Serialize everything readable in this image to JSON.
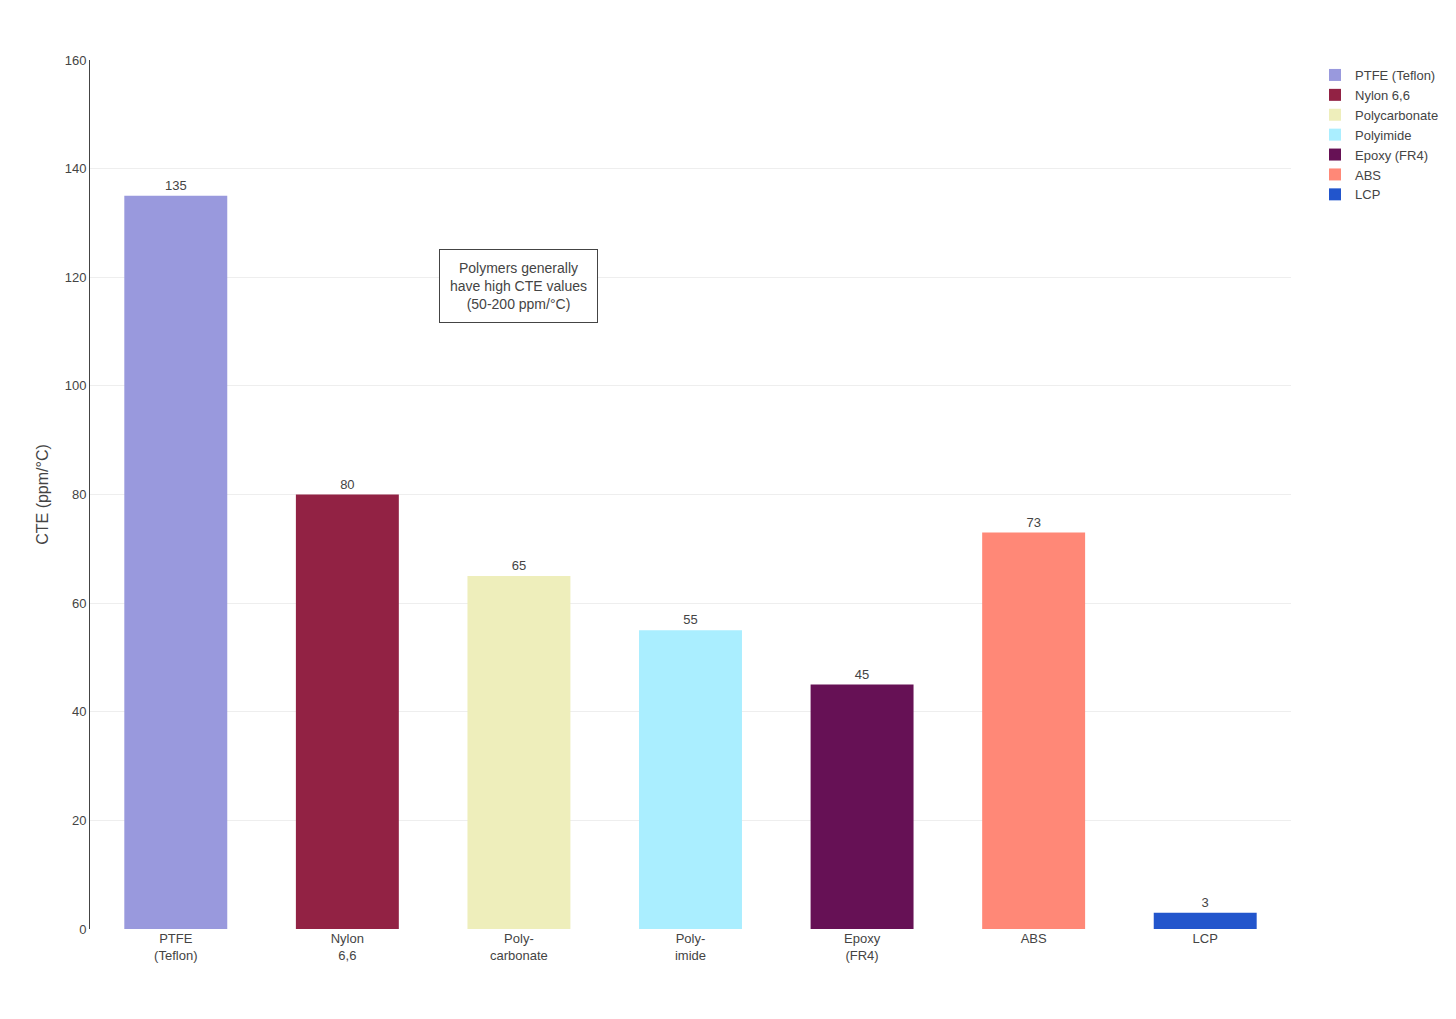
{
  "chart_data": {
    "type": "bar",
    "categories": [
      "PTFE\n(Teflon)",
      "Nylon\n6,6",
      "Poly-\ncarbonate",
      "Poly-\nimide",
      "Epoxy\n(FR4)",
      "ABS",
      "LCP"
    ],
    "values": [
      135,
      80,
      65,
      55,
      45,
      73,
      3
    ],
    "colors": [
      "#9999DD",
      "#922244",
      "#EEEEBB",
      "#AAEEFF",
      "#661155",
      "#FF8877",
      "#2255CC"
    ],
    "legend_labels": [
      "PTFE (Teflon)",
      "Nylon 6,6",
      "Polycarbonate",
      "Polyimide",
      "Epoxy (FR4)",
      "ABS",
      "LCP"
    ],
    "ylabel": "CTE (ppm/°C)",
    "ylim": [
      0,
      160
    ],
    "yticks": [
      0,
      20,
      40,
      60,
      80,
      100,
      120,
      140,
      160
    ],
    "annotation": "Polymers generally\nhave high CTE values\n(50-200 ppm/°C)",
    "legend": "upper right",
    "data_labels": true,
    "grid": true
  }
}
